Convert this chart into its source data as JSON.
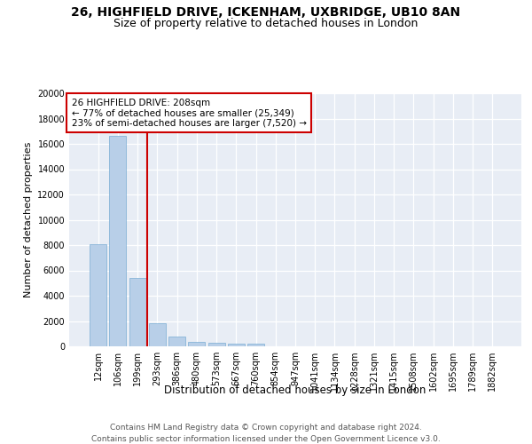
{
  "title_line1": "26, HIGHFIELD DRIVE, ICKENHAM, UXBRIDGE, UB10 8AN",
  "title_line2": "Size of property relative to detached houses in London",
  "xlabel": "Distribution of detached houses by size in London",
  "ylabel": "Number of detached properties",
  "categories": [
    "12sqm",
    "106sqm",
    "199sqm",
    "293sqm",
    "386sqm",
    "480sqm",
    "573sqm",
    "667sqm",
    "760sqm",
    "854sqm",
    "947sqm",
    "1041sqm",
    "1134sqm",
    "1228sqm",
    "1321sqm",
    "1415sqm",
    "1508sqm",
    "1602sqm",
    "1695sqm",
    "1789sqm",
    "1882sqm"
  ],
  "values": [
    8050,
    16600,
    5400,
    1850,
    800,
    380,
    260,
    210,
    200,
    0,
    0,
    0,
    0,
    0,
    0,
    0,
    0,
    0,
    0,
    0,
    0
  ],
  "bar_color": "#b8cfe8",
  "bar_edge_color": "#7aadd4",
  "vline_x_idx": 2,
  "vline_color": "#cc0000",
  "annotation_text": "26 HIGHFIELD DRIVE: 208sqm\n← 77% of detached houses are smaller (25,349)\n23% of semi-detached houses are larger (7,520) →",
  "annotation_box_color": "#cc0000",
  "ylim": [
    0,
    20000
  ],
  "yticks": [
    0,
    2000,
    4000,
    6000,
    8000,
    10000,
    12000,
    14000,
    16000,
    18000,
    20000
  ],
  "bg_color": "#e8edf5",
  "footer_line1": "Contains HM Land Registry data © Crown copyright and database right 2024.",
  "footer_line2": "Contains public sector information licensed under the Open Government Licence v3.0.",
  "title_fontsize": 10,
  "subtitle_fontsize": 9,
  "xlabel_fontsize": 8.5,
  "ylabel_fontsize": 8,
  "tick_fontsize": 7,
  "footer_fontsize": 6.5,
  "annotation_fontsize": 7.5
}
